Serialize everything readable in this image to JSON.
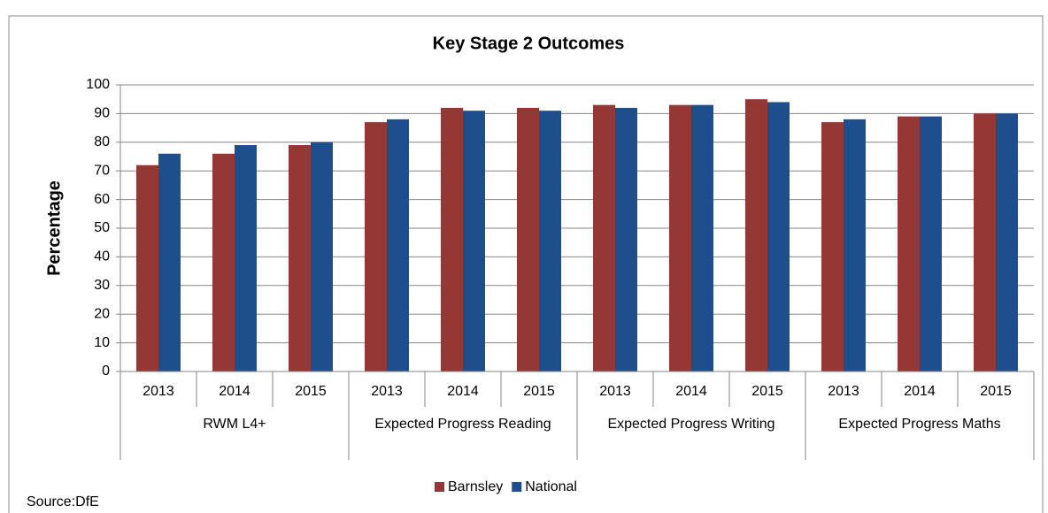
{
  "chart_data": {
    "type": "bar",
    "title": "Key Stage 2 Outcomes",
    "y_label": "Percentage",
    "source": "Source:DfE",
    "categories": [
      "2013",
      "2014",
      "2015",
      "2013",
      "2014",
      "2015",
      "2013",
      "2014",
      "2015",
      "2013",
      "2014",
      "2015"
    ],
    "groups": [
      "RWM L4+",
      "Expected Progress Reading",
      "Expected Progress Writing",
      "Expected Progress Maths"
    ],
    "series": [
      {
        "name": "Barnsley",
        "color": "#953735",
        "values": [
          72,
          76,
          79,
          87,
          92,
          92,
          93,
          93,
          95,
          87,
          89,
          90
        ]
      },
      {
        "name": "National",
        "color": "#1f4e8c",
        "values": [
          76,
          79,
          80,
          88,
          91,
          91,
          92,
          93,
          94,
          88,
          89,
          90
        ]
      }
    ],
    "ylim": [
      0,
      100
    ],
    "yticks": [
      0,
      10,
      20,
      30,
      40,
      50,
      60,
      70,
      80,
      90,
      100
    ],
    "grid": true,
    "legend": "bottom"
  }
}
